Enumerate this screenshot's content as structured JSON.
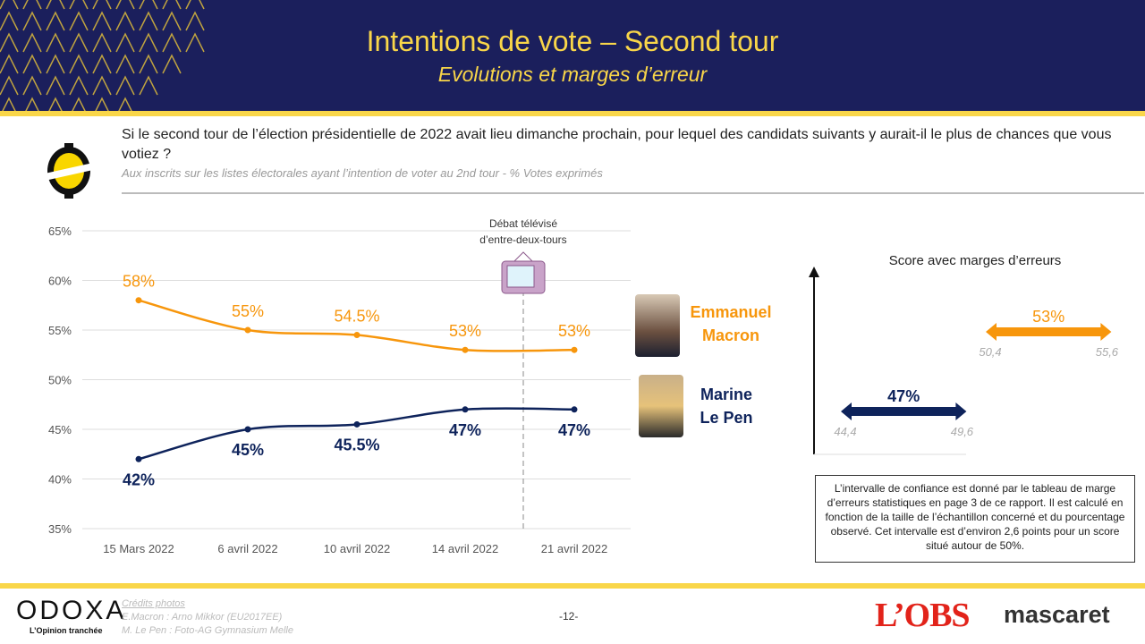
{
  "header": {
    "title": "Intentions de vote – Second tour",
    "subtitle": "Evolutions et marges d’erreur"
  },
  "question": "Si le second tour de l’élection présidentielle de 2022 avait lieu dimanche prochain, pour lequel des candidats suivants y aurait-il le plus de chances que vous votiez ?",
  "base": "Aux inscrits sur les listes électorales ayant l’intention de voter au 2nd tour  - % Votes exprimés",
  "colors": {
    "macron": "#f7960c",
    "lepen": "#0e235b",
    "header": "#1b1f5c",
    "accent": "#f9d649"
  },
  "chart_data": [
    {
      "type": "line",
      "categories": [
        "15 Mars 2022",
        "6 avril 2022",
        "10 avril 2022",
        "14 avril 2022",
        "21 avril 2022"
      ],
      "yticks": [
        "35%",
        "40%",
        "45%",
        "50%",
        "55%",
        "60%",
        "65%"
      ],
      "ylim": [
        35,
        65
      ],
      "grid": true,
      "series": [
        {
          "name": "Emmanuel Macron",
          "values": [
            58,
            55,
            54.5,
            53,
            53
          ],
          "labels": [
            "58%",
            "55%",
            "54.5%",
            "53%",
            "53%"
          ]
        },
        {
          "name": "Marine Le Pen",
          "values": [
            42,
            45,
            45.5,
            47,
            47
          ],
          "labels": [
            "42%",
            "45%",
            "45.5%",
            "47%",
            "47%"
          ]
        }
      ],
      "annotation": {
        "line1": "Débat télévisé",
        "line2": "d’entre-deux-tours",
        "icon": "tv-icon"
      }
    },
    {
      "type": "errorbar",
      "title": "Score avec marges d’erreurs",
      "series": [
        {
          "name": "Emmanuel Macron",
          "value": 53,
          "label": "53%",
          "low": 50.4,
          "high": 55.6,
          "low_label": "50,4",
          "high_label": "55,6"
        },
        {
          "name": "Marine Le Pen",
          "value": 47,
          "label": "47%",
          "low": 44.4,
          "high": 49.6,
          "low_label": "44,4",
          "high_label": "49,6"
        }
      ]
    }
  ],
  "candidates": {
    "macron": [
      "Emmanuel",
      "Macron"
    ],
    "lepen": [
      "Marine",
      "Le Pen"
    ]
  },
  "note": "L’intervalle de confiance est donné par le tableau de marge d’erreurs statistiques en page 3 de ce rapport. Il est calculé en fonction de la taille de l’échantillon concerné et du pourcentage observé. Cet intervalle est d’environ 2,6 points pour un score situé autour de 50%.",
  "footer": {
    "credits_title": "Crédits photos",
    "credit1": "E.Macron : Arno Mikkor (EU2017EE)",
    "credit2": "M. Le Pen : Foto-AG Gymnasium Melle",
    "page": "-12-",
    "odoxa": "ODOXA",
    "odoxa_tag": "L’Opinion tranchée",
    "obs": "L’OBS",
    "mascaret": "mascaret"
  }
}
